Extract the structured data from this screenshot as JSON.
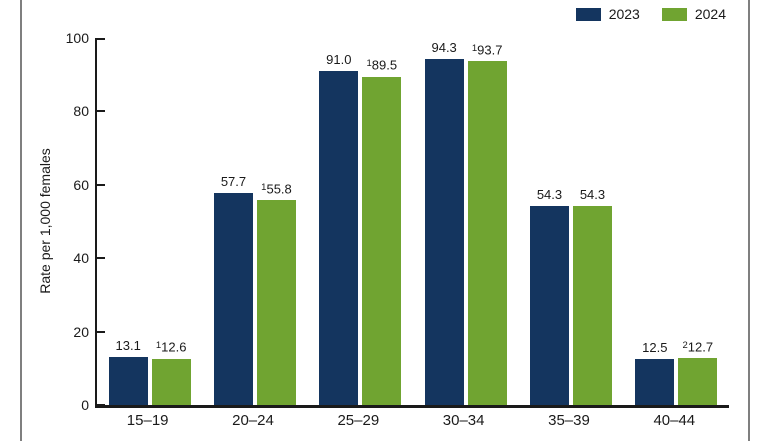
{
  "page": {
    "background": "#ffffff",
    "border_color": "#7f7f7f",
    "axis_color": "#1a1a1a"
  },
  "chart_data": {
    "type": "bar",
    "title": "",
    "xlabel": "",
    "ylabel": "Rate per 1,000 females",
    "ylim": [
      0,
      100
    ],
    "yticks": [
      0,
      20,
      40,
      60,
      80,
      100
    ],
    "grid": false,
    "legend_position": "top-right",
    "categories": [
      "15–19",
      "20–24",
      "25–29",
      "30–34",
      "35–39",
      "40–44"
    ],
    "series": [
      {
        "name": "2023",
        "color": "#14355F",
        "values": [
          13.1,
          57.7,
          91.0,
          94.3,
          54.3,
          12.5
        ],
        "labels": [
          {
            "sup": "",
            "text": "13.1"
          },
          {
            "sup": "",
            "text": "57.7"
          },
          {
            "sup": "",
            "text": "91.0"
          },
          {
            "sup": "",
            "text": "94.3"
          },
          {
            "sup": "",
            "text": "54.3"
          },
          {
            "sup": "",
            "text": "12.5"
          }
        ]
      },
      {
        "name": "2024",
        "color": "#70A431",
        "values": [
          12.6,
          55.8,
          89.5,
          93.7,
          54.3,
          12.7
        ],
        "labels": [
          {
            "sup": "1",
            "text": "12.6"
          },
          {
            "sup": "1",
            "text": "55.8"
          },
          {
            "sup": "1",
            "text": "89.5"
          },
          {
            "sup": "1",
            "text": "93.7"
          },
          {
            "sup": "",
            "text": "54.3"
          },
          {
            "sup": "2",
            "text": "12.7"
          }
        ]
      }
    ]
  }
}
